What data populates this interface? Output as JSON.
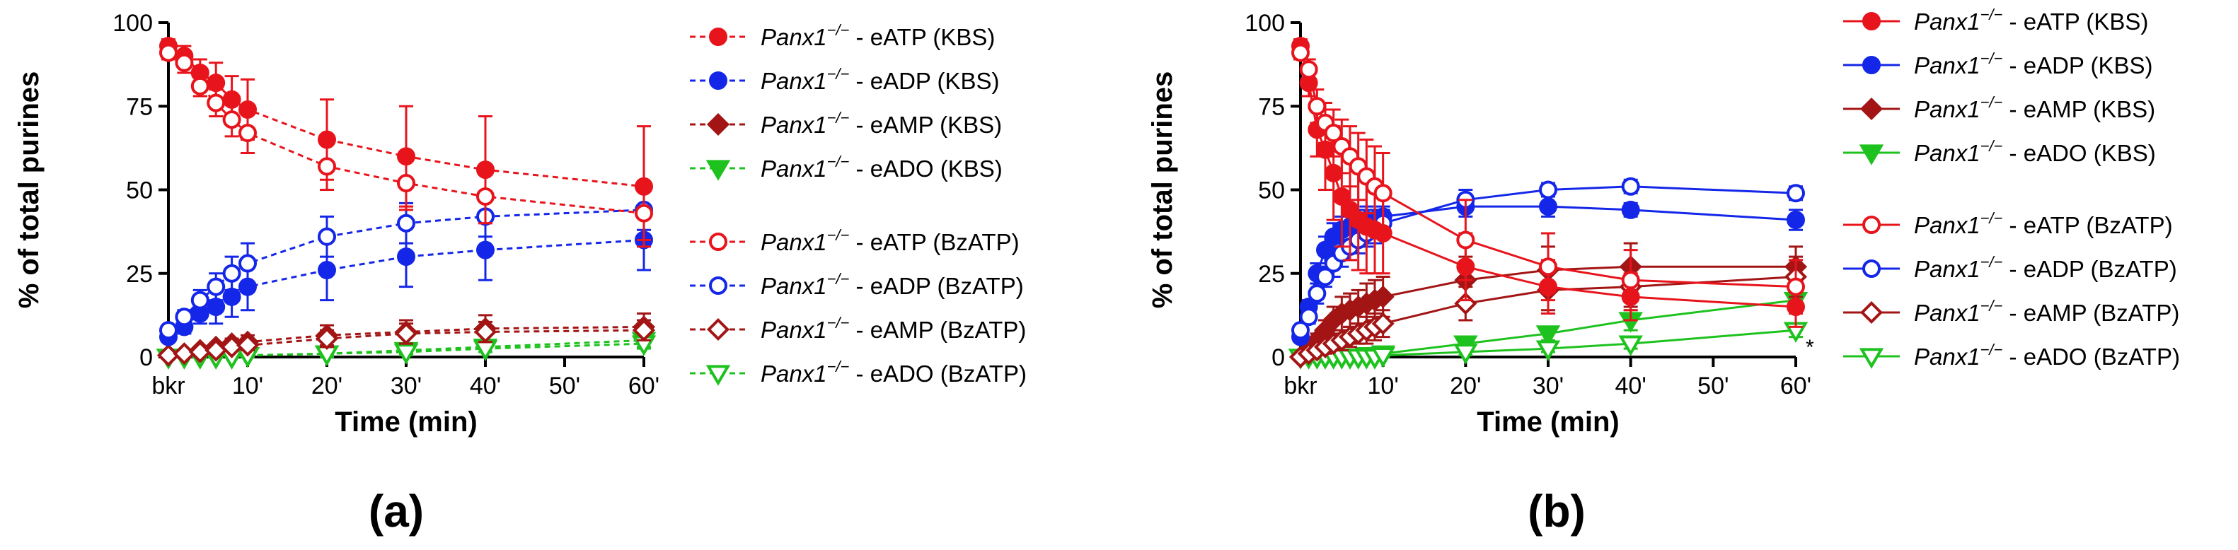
{
  "chart_data": [
    {
      "panel_label": "(a)",
      "type": "line",
      "line_style": "dashed",
      "xlabel": "Time (min)",
      "ylabel": "% of total purines",
      "ylim": [
        0,
        100
      ],
      "yticks": [
        0,
        25,
        50,
        75,
        100
      ],
      "xticks": [
        "bkr",
        "10'",
        "20'",
        "30'",
        "40'",
        "50'",
        "60'"
      ],
      "x_timepoints": [
        0,
        2,
        4,
        6,
        8,
        10,
        20,
        30,
        40,
        60
      ],
      "series": [
        {
          "name": "Panx1−/− - eATP (KBS)",
          "color": "#e8141c",
          "marker": "circle",
          "filled": true,
          "x": [
            0,
            2,
            4,
            6,
            8,
            10,
            20,
            30,
            40,
            60
          ],
          "y": [
            93,
            90,
            85,
            82,
            77,
            74,
            65,
            60,
            56,
            51
          ],
          "err": [
            2,
            3,
            4,
            6,
            7,
            9,
            12,
            15,
            16,
            18
          ]
        },
        {
          "name": "Panx1−/− - eADP (KBS)",
          "color": "#1427e8",
          "marker": "circle",
          "filled": true,
          "x": [
            0,
            2,
            4,
            6,
            8,
            10,
            20,
            30,
            40,
            60
          ],
          "y": [
            6,
            9,
            13,
            15,
            18,
            21,
            26,
            30,
            32,
            35
          ],
          "err": [
            1,
            2,
            3,
            5,
            6,
            7,
            9,
            9,
            9,
            9
          ]
        },
        {
          "name": "Panx1−/− - eAMP (KBS)",
          "color": "#a31515",
          "marker": "diamond",
          "filled": true,
          "x": [
            0,
            2,
            4,
            6,
            8,
            10,
            20,
            30,
            40,
            60
          ],
          "y": [
            0.5,
            1,
            2,
            3,
            4,
            4.5,
            6.5,
            7.5,
            8.5,
            9
          ],
          "err": [
            0.5,
            0.5,
            1,
            1,
            1.5,
            2,
            3,
            3.5,
            4,
            4
          ]
        },
        {
          "name": "Panx1−/− - eADO (KBS)",
          "color": "#1ec21e",
          "marker": "triangle-down",
          "filled": true,
          "x": [
            0,
            2,
            4,
            6,
            8,
            10,
            20,
            30,
            40,
            60
          ],
          "y": [
            0,
            0,
            0,
            0,
            0,
            0.5,
            1,
            2,
            3,
            5
          ],
          "err": [
            0,
            0,
            0,
            0,
            0,
            0.5,
            1,
            1,
            1.5,
            2
          ]
        },
        {
          "name": "Panx1−/− - eATP (BzATP)",
          "color": "#e8141c",
          "marker": "circle",
          "filled": false,
          "x": [
            0,
            2,
            4,
            6,
            8,
            10,
            20,
            30,
            40,
            60
          ],
          "y": [
            91,
            88,
            81,
            76,
            71,
            67,
            57,
            52,
            48,
            43
          ],
          "err": [
            2,
            3,
            3,
            4,
            5,
            6,
            7,
            8,
            8,
            8
          ]
        },
        {
          "name": "Panx1−/− - eADP (BzATP)",
          "color": "#1427e8",
          "marker": "circle",
          "filled": false,
          "x": [
            0,
            2,
            4,
            6,
            8,
            10,
            20,
            30,
            40,
            60
          ],
          "y": [
            8,
            12,
            17,
            21,
            25,
            28,
            36,
            40,
            42,
            44
          ],
          "err": [
            1,
            2,
            3,
            4,
            5,
            6,
            6,
            6,
            6,
            6
          ]
        },
        {
          "name": "Panx1−/− - eAMP (BzATP)",
          "color": "#a31515",
          "marker": "diamond",
          "filled": false,
          "x": [
            0,
            2,
            4,
            6,
            8,
            10,
            20,
            30,
            40,
            60
          ],
          "y": [
            0.5,
            1,
            1.5,
            2,
            3,
            3.5,
            5.5,
            7,
            7.5,
            8
          ],
          "err": [
            0.5,
            0.5,
            1,
            1,
            1,
            1.5,
            2.5,
            3,
            3,
            3
          ]
        },
        {
          "name": "Panx1−/− - eADO (BzATP)",
          "color": "#1ec21e",
          "marker": "triangle-down",
          "filled": false,
          "x": [
            0,
            2,
            4,
            6,
            8,
            10,
            20,
            30,
            40,
            60
          ],
          "y": [
            0,
            0,
            0,
            0,
            0,
            0.5,
            1,
            1.5,
            2.5,
            4
          ],
          "err": [
            0,
            0,
            0,
            0,
            0,
            0.5,
            0.5,
            1,
            1,
            1.5
          ]
        }
      ]
    },
    {
      "panel_label": "(b)",
      "type": "line",
      "line_style": "solid",
      "xlabel": "Time (min)",
      "ylabel": "% of total purines",
      "ylim": [
        0,
        100
      ],
      "yticks": [
        0,
        25,
        50,
        75,
        100
      ],
      "xticks": [
        "bkr",
        "10'",
        "20'",
        "30'",
        "40'",
        "50'",
        "60'"
      ],
      "annotation": "*",
      "series": [
        {
          "name": "Panx1−/− - eATP (KBS)",
          "color": "#e8141c",
          "marker": "circle",
          "filled": true,
          "x": [
            0,
            1,
            2,
            3,
            4,
            5,
            6,
            7,
            8,
            9,
            10,
            20,
            30,
            40,
            60
          ],
          "y": [
            93,
            82,
            68,
            62,
            55,
            48,
            44,
            41,
            39,
            38,
            37,
            27,
            21,
            18,
            15
          ],
          "err": [
            2,
            4,
            8,
            12,
            14,
            15,
            15,
            15,
            14,
            13,
            12,
            10,
            8,
            7,
            6
          ]
        },
        {
          "name": "Panx1−/− - eADP (KBS)",
          "color": "#1427e8",
          "marker": "circle",
          "filled": true,
          "x": [
            0,
            1,
            2,
            3,
            4,
            5,
            6,
            7,
            8,
            9,
            10,
            20,
            30,
            40,
            60
          ],
          "y": [
            6,
            15,
            25,
            32,
            36,
            38,
            39,
            40,
            41,
            41,
            42,
            45,
            45,
            44,
            41
          ],
          "err": [
            1,
            2,
            3,
            4,
            4,
            4,
            4,
            4,
            4,
            3,
            3,
            3,
            3,
            2,
            3
          ]
        },
        {
          "name": "Panx1−/− - eAMP (KBS)",
          "color": "#a31515",
          "marker": "diamond",
          "filled": true,
          "x": [
            0,
            1,
            2,
            3,
            4,
            5,
            6,
            7,
            8,
            9,
            10,
            20,
            30,
            40,
            60
          ],
          "y": [
            0,
            2,
            5,
            8,
            11,
            13,
            14,
            15,
            16,
            17,
            18,
            23,
            26,
            27,
            27
          ],
          "err": [
            0,
            1,
            2,
            3,
            4,
            5,
            5,
            5,
            6,
            6,
            6,
            7,
            7,
            7,
            6
          ]
        },
        {
          "name": "Panx1−/− - eADO (KBS)",
          "color": "#1ec21e",
          "marker": "triangle-down",
          "filled": true,
          "x": [
            0,
            1,
            2,
            3,
            4,
            5,
            6,
            7,
            8,
            9,
            10,
            20,
            30,
            40,
            60
          ],
          "y": [
            0,
            0,
            0,
            0,
            0,
            0,
            0,
            0,
            0.5,
            0.5,
            1,
            4,
            7,
            11,
            17
          ],
          "err": [
            0,
            0,
            0,
            0,
            0,
            0,
            0,
            0,
            0.5,
            0.5,
            0.5,
            1,
            2,
            3,
            4
          ]
        },
        {
          "name": "Panx1−/− - eATP (BzATP)",
          "color": "#e8141c",
          "marker": "circle",
          "filled": false,
          "x": [
            0,
            1,
            2,
            3,
            4,
            5,
            6,
            7,
            8,
            9,
            10,
            20,
            30,
            40,
            60
          ],
          "y": [
            91,
            86,
            75,
            70,
            67,
            63,
            60,
            57,
            54,
            51,
            49,
            35,
            27,
            23,
            21
          ],
          "err": [
            2,
            3,
            5,
            6,
            7,
            8,
            9,
            10,
            11,
            12,
            12,
            12,
            10,
            9,
            8
          ]
        },
        {
          "name": "Panx1−/− - eADP (BzATP)",
          "color": "#1427e8",
          "marker": "circle",
          "filled": false,
          "x": [
            0,
            1,
            2,
            3,
            4,
            5,
            6,
            7,
            8,
            9,
            10,
            20,
            30,
            40,
            60
          ],
          "y": [
            8,
            12,
            19,
            24,
            28,
            31,
            33,
            35,
            37,
            38,
            40,
            47,
            50,
            51,
            49
          ],
          "err": [
            1,
            2,
            3,
            3,
            4,
            4,
            4,
            4,
            4,
            4,
            4,
            3,
            2,
            2,
            2
          ]
        },
        {
          "name": "Panx1−/− - eAMP (BzATP)",
          "color": "#a31515",
          "marker": "diamond",
          "filled": false,
          "x": [
            0,
            1,
            2,
            3,
            4,
            5,
            6,
            7,
            8,
            9,
            10,
            20,
            30,
            40,
            60
          ],
          "y": [
            0,
            1,
            2,
            3,
            4,
            5,
            6,
            7,
            8,
            9,
            10,
            16,
            20,
            21,
            24
          ],
          "err": [
            0,
            1,
            1,
            2,
            2,
            3,
            3,
            3,
            4,
            4,
            4,
            5,
            6,
            6,
            6
          ]
        },
        {
          "name": "Panx1−/− - eADO (BzATP)",
          "color": "#1ec21e",
          "marker": "triangle-down",
          "filled": false,
          "x": [
            0,
            1,
            2,
            3,
            4,
            5,
            6,
            7,
            8,
            9,
            10,
            20,
            30,
            40,
            60
          ],
          "y": [
            0,
            0,
            0,
            0,
            0,
            0,
            0,
            0,
            0,
            0,
            0.5,
            1.5,
            2.5,
            4,
            8
          ],
          "err": [
            0,
            0,
            0,
            0,
            0,
            0,
            0,
            0,
            0,
            0,
            0.5,
            1,
            1,
            1.5,
            2
          ]
        }
      ]
    }
  ]
}
